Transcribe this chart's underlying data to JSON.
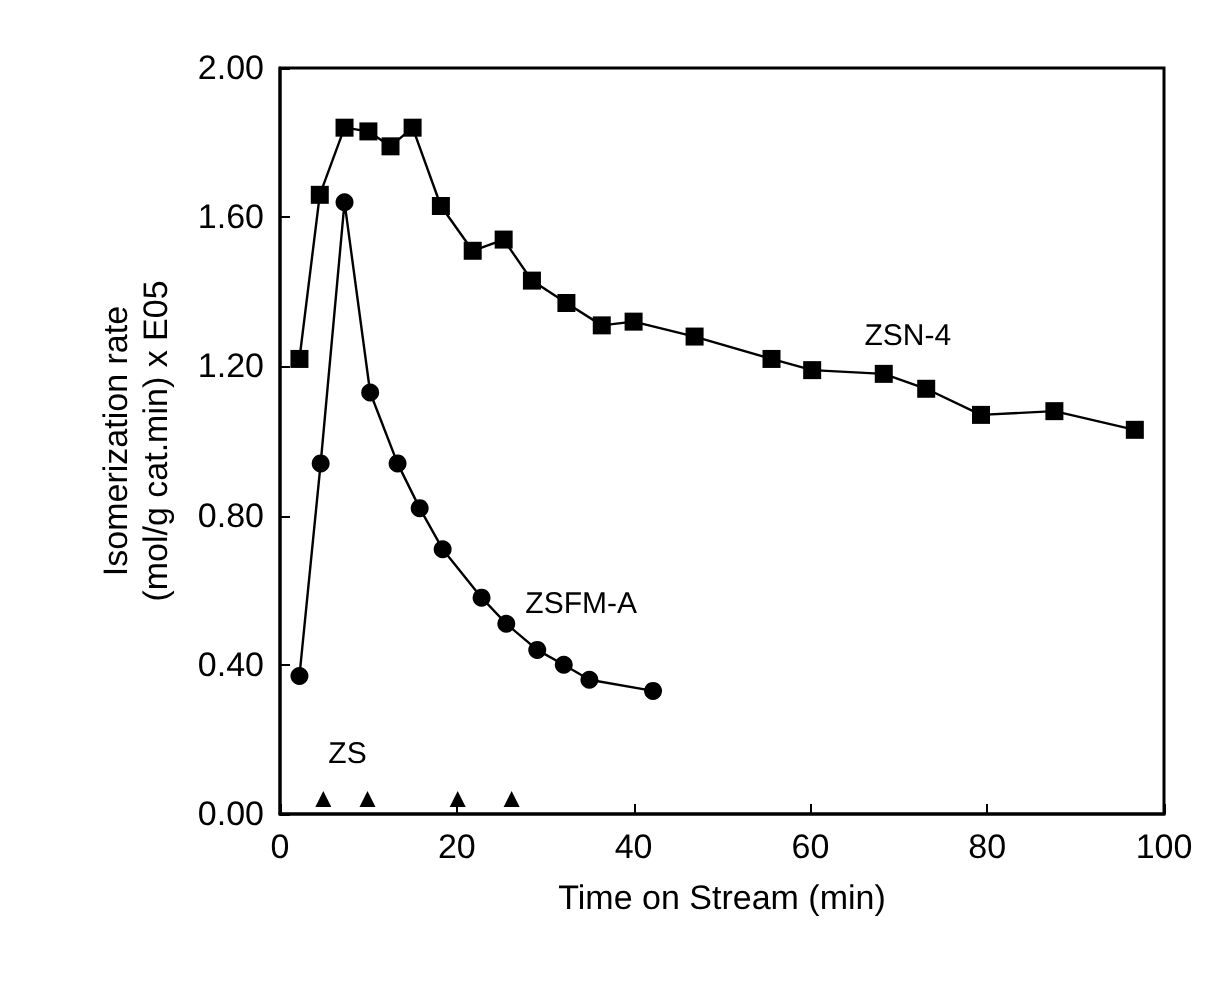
{
  "chart_data": {
    "type": "line",
    "xlabel": "Time on Stream (min)",
    "ylabel": "Isomerization rate\n(mol/g cat.min) x E05",
    "xlim": [
      0,
      100
    ],
    "xticks": [
      0,
      20,
      40,
      60,
      80,
      100
    ],
    "ylim": [
      0,
      2
    ],
    "yticks": [
      {
        "value": 0,
        "label": "0.00"
      },
      {
        "value": 0.4,
        "label": "0.40"
      },
      {
        "value": 0.8,
        "label": "0.80"
      },
      {
        "value": 1.2,
        "label": "1.20"
      },
      {
        "value": 1.6,
        "label": "1.60"
      },
      {
        "value": 2,
        "label": "2.00"
      }
    ],
    "grid": false,
    "legend": false,
    "line_style": "solid",
    "series": [
      {
        "name": "ZSN-4",
        "color": "#000000",
        "marker": "square",
        "x": [
          2.2,
          4.5,
          7.3,
          10.0,
          12.5,
          15.0,
          18.2,
          21.8,
          25.3,
          28.5,
          32.4,
          36.4,
          40.0,
          46.9,
          55.6,
          60.2,
          68.3,
          73.1,
          79.3,
          87.6,
          96.7
        ],
        "values": [
          1.22,
          1.66,
          1.84,
          1.83,
          1.79,
          1.84,
          1.63,
          1.51,
          1.54,
          1.43,
          1.37,
          1.31,
          1.32,
          1.28,
          1.22,
          1.19,
          1.18,
          1.14,
          1.07,
          1.08,
          1.03
        ]
      },
      {
        "name": "ZSFM-A",
        "color": "#000000",
        "marker": "circle",
        "x": [
          2.2,
          4.6,
          7.3,
          10.2,
          13.3,
          15.8,
          18.4,
          22.8,
          25.6,
          29.1,
          32.1,
          35.0,
          42.2
        ],
        "values": [
          0.37,
          0.94,
          1.64,
          1.13,
          0.94,
          0.82,
          0.71,
          0.58,
          0.51,
          0.44,
          0.4,
          0.36,
          0.33
        ]
      },
      {
        "name": "ZS",
        "type": "scatter",
        "color": "#000000",
        "marker": "triangle",
        "x": [
          4.9,
          9.9,
          20.1,
          26.2
        ],
        "values": [
          0.04,
          0.04,
          0.04,
          0.04
        ]
      }
    ]
  }
}
